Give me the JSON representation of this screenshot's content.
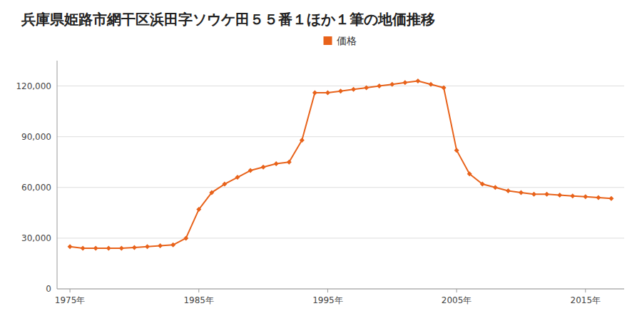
{
  "chart_data": {
    "type": "line",
    "title": "兵庫県姫路市網干区浜田字ソウケ田５５番１ほか１筆の地価推移",
    "x": [
      1975,
      1976,
      1977,
      1978,
      1979,
      1980,
      1981,
      1982,
      1983,
      1984,
      1985,
      1986,
      1987,
      1988,
      1989,
      1990,
      1991,
      1992,
      1993,
      1994,
      1995,
      1996,
      1997,
      1998,
      1999,
      2000,
      2001,
      2002,
      2003,
      2004,
      2005,
      2006,
      2007,
      2008,
      2009,
      2010,
      2011,
      2012,
      2013,
      2014,
      2015,
      2016,
      2017
    ],
    "series": [
      {
        "name": "価格",
        "color": "#E8621A",
        "marker": "diamond",
        "values": [
          25000,
          24000,
          24000,
          24000,
          24000,
          24500,
          25000,
          25500,
          26000,
          30000,
          47000,
          57000,
          62000,
          66000,
          70000,
          72000,
          74000,
          75000,
          88000,
          116000,
          116000,
          117000,
          118000,
          119000,
          120000,
          121000,
          122000,
          123000,
          121000,
          119000,
          82000,
          68000,
          62000,
          60000,
          58000,
          57000,
          56000,
          56000,
          55500,
          55000,
          54500,
          54000,
          53500
        ]
      }
    ],
    "xlim": [
      1974,
      2018
    ],
    "ylim": [
      0,
      135000
    ],
    "xticks": [
      {
        "value": 1975,
        "label": "1975年"
      },
      {
        "value": 1985,
        "label": "1985年"
      },
      {
        "value": 1995,
        "label": "1995年"
      },
      {
        "value": 2005,
        "label": "2005年"
      },
      {
        "value": 2015,
        "label": "2015年"
      }
    ],
    "yticks": [
      0,
      {
        "value": 30000,
        "label": "30,000"
      },
      {
        "value": 60000,
        "label": "60,000"
      },
      {
        "value": 90000,
        "label": "90,000"
      },
      {
        "value": 120000,
        "label": "120,000"
      }
    ],
    "grid": true,
    "legend": "top"
  }
}
